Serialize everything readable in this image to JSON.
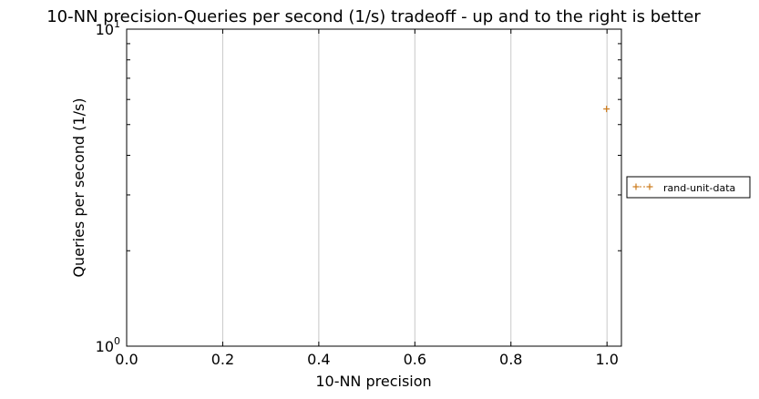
{
  "chart_data": {
    "type": "scatter",
    "title": "10-NN precision-Queries per second (1/s) tradeoff - up and to the right is better",
    "xlabel": "10-NN precision",
    "ylabel": "Queries per second (1/s)",
    "xlim": [
      0.0,
      1.03
    ],
    "ylim": [
      1,
      10
    ],
    "yscale": "log",
    "grid": "vertical-only",
    "x_ticks": [
      "0.0",
      "0.2",
      "0.4",
      "0.6",
      "0.8",
      "1.0"
    ],
    "y_ticks": [
      {
        "base": "10",
        "exp": "0",
        "value": 1
      },
      {
        "base": "10",
        "exp": "1",
        "value": 10
      }
    ],
    "legend_position": "right-outside",
    "series": [
      {
        "name": "rand-unit-data",
        "color": "#cc7a1a",
        "marker": "plus",
        "points": [
          {
            "x": 0.999,
            "y": 5.6
          }
        ]
      }
    ]
  }
}
